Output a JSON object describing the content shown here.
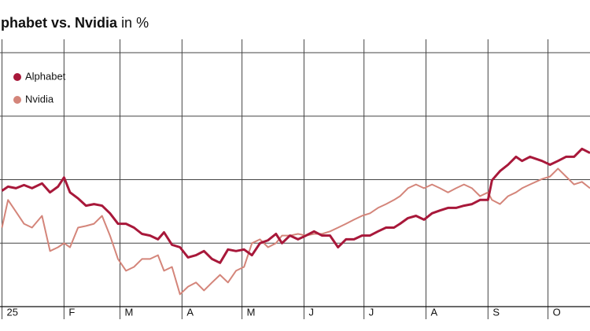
{
  "chart_data": {
    "type": "line",
    "title": "Alphabet vs. Nvidia",
    "title_suffix": "in %",
    "x": [
      0,
      3,
      7,
      11,
      15,
      20,
      24,
      28,
      31,
      34,
      38,
      42,
      46,
      50,
      54,
      58,
      62,
      66,
      70,
      74,
      78,
      81,
      85,
      89,
      93,
      97,
      101,
      105,
      109,
      113,
      117,
      121,
      125,
      129,
      133,
      137,
      140,
      144,
      148,
      152,
      156,
      160,
      164,
      168,
      172,
      176,
      180,
      184,
      188,
      192,
      196,
      199,
      203,
      207,
      211,
      215,
      219,
      223,
      227,
      231,
      235,
      239,
      243,
      245,
      249,
      253,
      257,
      260,
      264,
      270,
      274,
      278,
      282,
      286,
      290,
      294
    ],
    "series": [
      {
        "name": "Alphabet",
        "color": "#a8183a",
        "values": [
          -3.5,
          -2.2,
          -2.7,
          -1.7,
          -2.7,
          -1.2,
          -4.0,
          -2.2,
          0.7,
          -4.0,
          -5.9,
          -8.2,
          -7.7,
          -8.2,
          -10.6,
          -13.9,
          -13.9,
          -15.1,
          -17.1,
          -17.6,
          -18.8,
          -16.6,
          -20.5,
          -21.3,
          -24.5,
          -23.8,
          -22.5,
          -25.0,
          -26.2,
          -22.0,
          -22.5,
          -22.0,
          -23.8,
          -20.0,
          -19.1,
          -17.1,
          -20.0,
          -17.6,
          -18.8,
          -17.6,
          -16.3,
          -17.6,
          -17.6,
          -21.3,
          -18.8,
          -18.8,
          -17.6,
          -17.6,
          -16.3,
          -15.1,
          -15.1,
          -13.9,
          -12.1,
          -11.4,
          -12.6,
          -10.6,
          -9.7,
          -8.9,
          -8.9,
          -8.2,
          -7.7,
          -6.4,
          -6.4,
          -0.2,
          2.7,
          4.7,
          7.2,
          5.9,
          7.2,
          5.9,
          4.7,
          5.9,
          7.2,
          7.2,
          9.7,
          8.4
        ]
      },
      {
        "name": "Nvidia",
        "color": "#d4857a",
        "values": [
          -15.1,
          -6.4,
          -10.1,
          -13.9,
          -15.1,
          -11.4,
          -22.5,
          -21.3,
          -20.0,
          -21.3,
          -15.1,
          -14.6,
          -13.9,
          -11.4,
          -17.6,
          -25.0,
          -28.7,
          -27.5,
          -25.0,
          -25.0,
          -23.8,
          -28.7,
          -27.5,
          -36.1,
          -33.7,
          -32.4,
          -34.9,
          -32.4,
          -30.0,
          -32.4,
          -28.7,
          -27.5,
          -20.0,
          -18.8,
          -21.3,
          -20.0,
          -17.6,
          -17.6,
          -17.1,
          -17.6,
          -17.1,
          -17.1,
          -16.3,
          -15.1,
          -13.9,
          -12.6,
          -11.4,
          -10.6,
          -8.9,
          -7.7,
          -6.4,
          -5.2,
          -2.7,
          -1.5,
          -2.7,
          -1.5,
          -2.7,
          -4.0,
          -2.7,
          -1.5,
          -2.7,
          -5.2,
          -4.0,
          -6.4,
          -7.7,
          -5.2,
          -4.0,
          -2.7,
          -1.5,
          0.2,
          1.0,
          3.5,
          1.0,
          -1.5,
          -0.7,
          -2.7
        ]
      }
    ],
    "xlim": [
      -1,
      294
    ],
    "xticks": [
      {
        "value": 0,
        "label": "25"
      },
      {
        "value": 31,
        "label": "F"
      },
      {
        "value": 59,
        "label": "M"
      },
      {
        "value": 90,
        "label": "A"
      },
      {
        "value": 120,
        "label": "M"
      },
      {
        "value": 151,
        "label": "J"
      },
      {
        "value": 181,
        "label": "J"
      },
      {
        "value": 212,
        "label": "A"
      },
      {
        "value": 243,
        "label": "S"
      },
      {
        "value": 273,
        "label": "O"
      }
    ],
    "ylim": [
      -40,
      40
    ],
    "yticks": [
      -20,
      0,
      20,
      40
    ],
    "grid": true
  }
}
